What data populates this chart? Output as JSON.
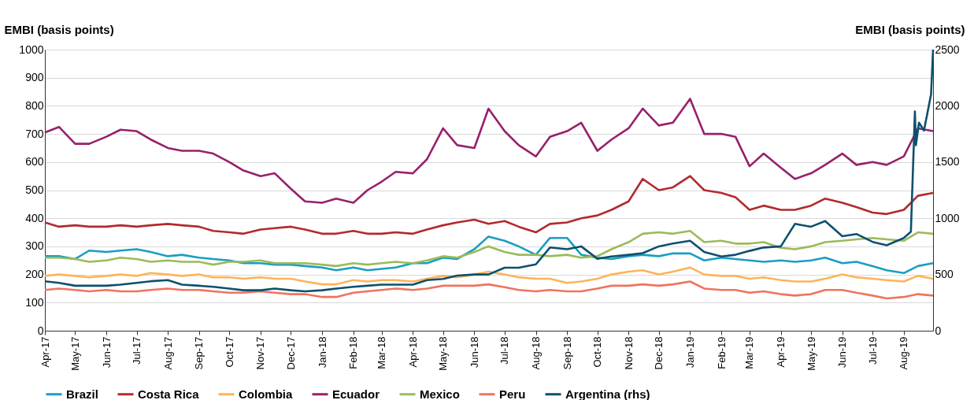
{
  "chart_data": {
    "type": "line",
    "ylabel": "EMBI (basis points)",
    "y2label": "EMBI (basis points)",
    "x": [
      "2017-04-01",
      "2017-04-15",
      "2017-05-01",
      "2017-05-15",
      "2017-06-01",
      "2017-06-15",
      "2017-07-01",
      "2017-07-15",
      "2017-08-01",
      "2017-08-15",
      "2017-09-01",
      "2017-09-15",
      "2017-10-01",
      "2017-10-15",
      "2017-11-01",
      "2017-11-15",
      "2017-12-01",
      "2017-12-15",
      "2018-01-01",
      "2018-01-15",
      "2018-02-01",
      "2018-02-15",
      "2018-03-01",
      "2018-03-15",
      "2018-04-01",
      "2018-04-15",
      "2018-05-01",
      "2018-05-15",
      "2018-06-01",
      "2018-06-15",
      "2018-07-01",
      "2018-07-15",
      "2018-08-01",
      "2018-08-15",
      "2018-09-01",
      "2018-09-15",
      "2018-10-01",
      "2018-10-15",
      "2018-11-01",
      "2018-11-15",
      "2018-12-01",
      "2018-12-15",
      "2019-01-01",
      "2019-01-15",
      "2019-02-01",
      "2019-02-15",
      "2019-03-01",
      "2019-03-15",
      "2019-04-01",
      "2019-04-15",
      "2019-05-01",
      "2019-05-15",
      "2019-06-01",
      "2019-06-15",
      "2019-07-01",
      "2019-07-15",
      "2019-08-01",
      "2019-08-15",
      "2019-08-30"
    ],
    "xlim": [
      "2017-04-01",
      "2019-08-30"
    ],
    "xticks": [
      {
        "value": "2017-04-01",
        "label": "Apr-17"
      },
      {
        "value": "2017-05-01",
        "label": "May-17"
      },
      {
        "value": "2017-06-01",
        "label": "Jun-17"
      },
      {
        "value": "2017-07-01",
        "label": "Jul-17"
      },
      {
        "value": "2017-08-01",
        "label": "Aug-17"
      },
      {
        "value": "2017-09-01",
        "label": "Sep-17"
      },
      {
        "value": "2017-10-01",
        "label": "Oct-17"
      },
      {
        "value": "2017-11-01",
        "label": "Nov-17"
      },
      {
        "value": "2017-12-01",
        "label": "Dec-17"
      },
      {
        "value": "2018-01-01",
        "label": "Jan-18"
      },
      {
        "value": "2018-02-01",
        "label": "Feb-18"
      },
      {
        "value": "2018-03-01",
        "label": "Mar-18"
      },
      {
        "value": "2018-04-01",
        "label": "Apr-18"
      },
      {
        "value": "2018-05-01",
        "label": "May-18"
      },
      {
        "value": "2018-06-01",
        "label": "Jun-18"
      },
      {
        "value": "2018-07-01",
        "label": "Jul-18"
      },
      {
        "value": "2018-08-01",
        "label": "Aug-18"
      },
      {
        "value": "2018-09-01",
        "label": "Sep-18"
      },
      {
        "value": "2018-10-01",
        "label": "Oct-18"
      },
      {
        "value": "2018-11-01",
        "label": "Nov-18"
      },
      {
        "value": "2018-12-01",
        "label": "Dec-18"
      },
      {
        "value": "2019-01-01",
        "label": "Jan-19"
      },
      {
        "value": "2019-02-01",
        "label": "Feb-19"
      },
      {
        "value": "2019-03-01",
        "label": "Mar-19"
      },
      {
        "value": "2019-04-01",
        "label": "Apr-19"
      },
      {
        "value": "2019-05-01",
        "label": "May-19"
      },
      {
        "value": "2019-06-01",
        "label": "Jun-19"
      },
      {
        "value": "2019-07-01",
        "label": "Jul-19"
      },
      {
        "value": "2019-08-01",
        "label": "Aug-19"
      }
    ],
    "ylim": [
      0,
      1000
    ],
    "yticks": [
      0,
      100,
      200,
      300,
      400,
      500,
      600,
      700,
      800,
      900,
      1000
    ],
    "y2lim": [
      0,
      2500
    ],
    "y2ticks": [
      0,
      500,
      1000,
      1500,
      2000,
      2500
    ],
    "grid": "y",
    "legend": "bottom",
    "marker": "none",
    "line_style": "solid",
    "series": [
      {
        "name": "Brazil",
        "color": "#1a9ec2",
        "values": [
          265,
          265,
          255,
          285,
          280,
          285,
          290,
          280,
          265,
          270,
          260,
          255,
          250,
          240,
          240,
          235,
          235,
          230,
          225,
          215,
          225,
          215,
          220,
          225,
          240,
          240,
          260,
          255,
          290,
          335,
          320,
          300,
          270,
          330,
          330,
          270,
          260,
          255,
          265,
          270,
          265,
          275,
          275,
          250,
          260,
          255,
          250,
          245,
          250,
          245,
          250,
          260,
          240,
          245,
          230,
          215,
          205,
          230,
          240
        ]
      },
      {
        "name": "Costa Rica",
        "color": "#b22a2e",
        "values": [
          385,
          370,
          375,
          370,
          370,
          375,
          370,
          375,
          380,
          375,
          370,
          355,
          350,
          345,
          360,
          365,
          370,
          360,
          345,
          345,
          355,
          345,
          345,
          350,
          345,
          360,
          375,
          385,
          395,
          380,
          390,
          370,
          350,
          380,
          385,
          400,
          410,
          430,
          460,
          540,
          500,
          510,
          550,
          500,
          490,
          475,
          430,
          445,
          430,
          430,
          445,
          470,
          455,
          440,
          420,
          415,
          430,
          480,
          490
        ]
      },
      {
        "name": "Colombia",
        "color": "#fdb45a",
        "values": [
          195,
          200,
          195,
          190,
          195,
          200,
          195,
          205,
          200,
          195,
          200,
          190,
          190,
          185,
          190,
          185,
          185,
          175,
          165,
          165,
          180,
          175,
          180,
          180,
          175,
          185,
          195,
          190,
          200,
          210,
          200,
          190,
          185,
          185,
          170,
          175,
          185,
          200,
          210,
          215,
          200,
          210,
          225,
          200,
          195,
          195,
          185,
          190,
          180,
          175,
          175,
          185,
          200,
          190,
          185,
          180,
          175,
          195,
          185
        ]
      },
      {
        "name": "Ecuador",
        "color": "#97206a",
        "values": [
          705,
          725,
          665,
          665,
          690,
          715,
          710,
          680,
          650,
          640,
          640,
          630,
          600,
          570,
          550,
          560,
          505,
          460,
          455,
          470,
          455,
          500,
          530,
          565,
          560,
          610,
          720,
          660,
          650,
          790,
          710,
          660,
          620,
          690,
          710,
          740,
          640,
          680,
          720,
          790,
          730,
          740,
          825,
          700,
          700,
          690,
          585,
          630,
          580,
          540,
          560,
          590,
          630,
          590,
          600,
          590,
          620,
          720,
          710
        ]
      },
      {
        "name": "Mexico",
        "color": "#9bbb59",
        "values": [
          260,
          260,
          255,
          245,
          250,
          260,
          255,
          245,
          250,
          245,
          245,
          235,
          245,
          245,
          250,
          240,
          240,
          240,
          235,
          230,
          240,
          235,
          240,
          245,
          240,
          250,
          265,
          260,
          280,
          300,
          280,
          270,
          270,
          265,
          270,
          260,
          265,
          290,
          315,
          345,
          350,
          345,
          355,
          315,
          320,
          310,
          310,
          315,
          295,
          290,
          300,
          315,
          320,
          325,
          330,
          325,
          320,
          350,
          345
        ]
      },
      {
        "name": "Peru",
        "color": "#f0735e",
        "values": [
          145,
          150,
          145,
          140,
          145,
          140,
          140,
          145,
          150,
          145,
          145,
          140,
          135,
          135,
          140,
          135,
          130,
          130,
          120,
          120,
          135,
          140,
          145,
          150,
          145,
          150,
          160,
          160,
          160,
          165,
          155,
          145,
          140,
          145,
          140,
          140,
          150,
          160,
          160,
          165,
          160,
          165,
          175,
          150,
          145,
          145,
          135,
          140,
          130,
          125,
          130,
          145,
          145,
          135,
          125,
          115,
          120,
          130,
          125
        ]
      },
      {
        "name": "Argentina (rhs)",
        "color": "#0d506e",
        "axis": "y2",
        "x": [
          "2017-04-01",
          "2017-04-15",
          "2017-05-01",
          "2017-05-15",
          "2017-06-01",
          "2017-06-15",
          "2017-07-01",
          "2017-07-15",
          "2017-08-01",
          "2017-08-15",
          "2017-09-01",
          "2017-09-15",
          "2017-10-01",
          "2017-10-15",
          "2017-11-01",
          "2017-11-15",
          "2017-12-01",
          "2017-12-15",
          "2018-01-01",
          "2018-01-15",
          "2018-02-01",
          "2018-02-15",
          "2018-03-01",
          "2018-03-15",
          "2018-04-01",
          "2018-04-15",
          "2018-05-01",
          "2018-05-15",
          "2018-06-01",
          "2018-06-15",
          "2018-07-01",
          "2018-07-15",
          "2018-08-01",
          "2018-08-15",
          "2018-09-01",
          "2018-09-15",
          "2018-10-01",
          "2018-10-15",
          "2018-11-01",
          "2018-11-15",
          "2018-12-01",
          "2018-12-15",
          "2019-01-01",
          "2019-01-15",
          "2019-02-01",
          "2019-02-15",
          "2019-03-01",
          "2019-03-15",
          "2019-04-01",
          "2019-04-15",
          "2019-05-01",
          "2019-05-15",
          "2019-06-01",
          "2019-06-15",
          "2019-07-01",
          "2019-07-15",
          "2019-08-01",
          "2019-08-08",
          "2019-08-12",
          "2019-08-13",
          "2019-08-16",
          "2019-08-21",
          "2019-08-28",
          "2019-08-30"
        ],
        "values": [
          440,
          425,
          400,
          400,
          400,
          410,
          425,
          440,
          450,
          410,
          400,
          390,
          375,
          360,
          360,
          375,
          360,
          350,
          360,
          375,
          390,
          400,
          410,
          410,
          410,
          450,
          460,
          490,
          500,
          500,
          560,
          560,
          590,
          740,
          725,
          750,
          640,
          660,
          675,
          690,
          750,
          775,
          800,
          700,
          660,
          675,
          710,
          740,
          750,
          950,
          925,
          975,
          840,
          860,
          790,
          760,
          825,
          880,
          1950,
          1650,
          1850,
          1780,
          2100,
          2500
        ]
      }
    ]
  }
}
